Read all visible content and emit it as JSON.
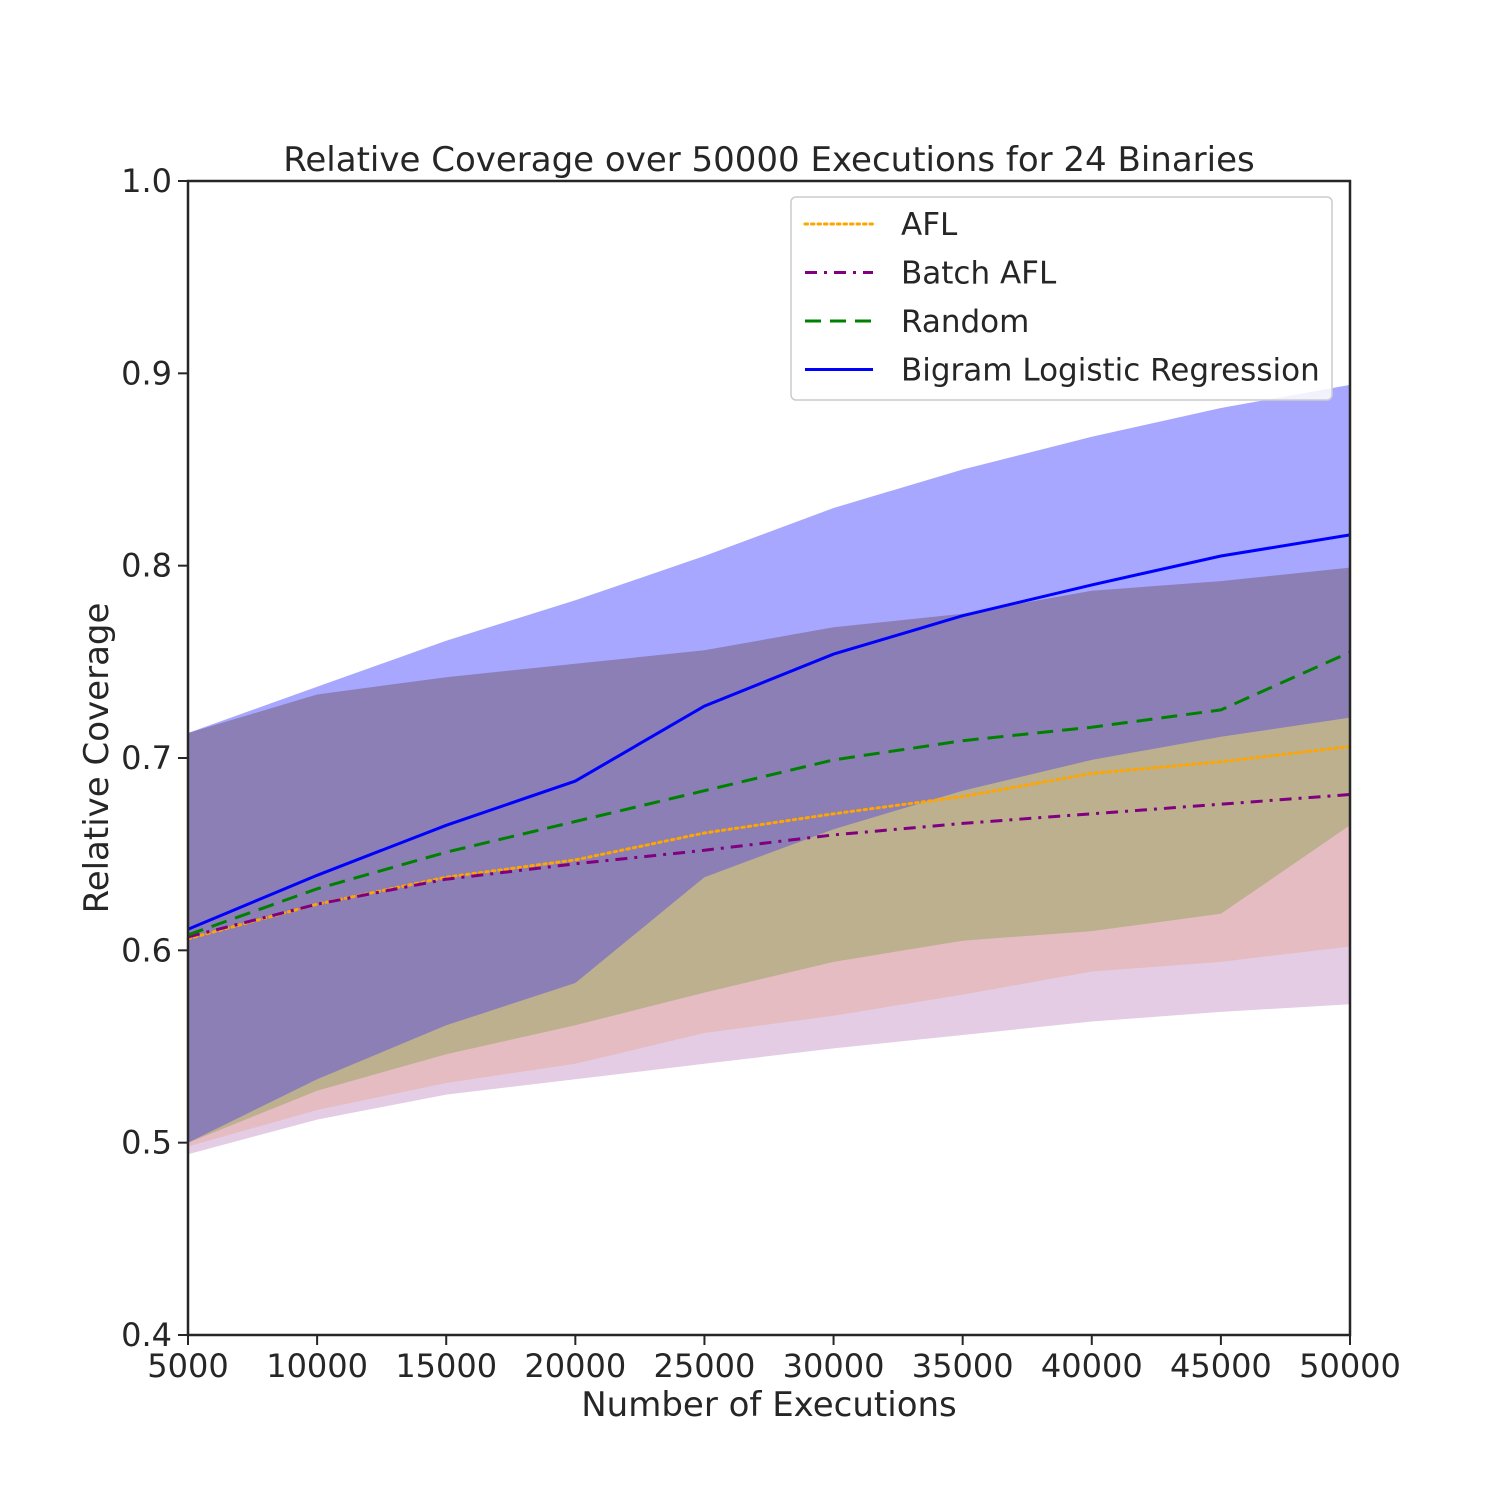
{
  "chart_data": {
    "type": "line",
    "title": "Relative Coverage over 50000 Executions for 24 Binaries",
    "xlabel": "Number of Executions",
    "ylabel": "Relative Coverage",
    "xlim": [
      5000,
      50000
    ],
    "ylim": [
      0.4,
      1.0
    ],
    "xticks": [
      5000,
      10000,
      15000,
      20000,
      25000,
      30000,
      35000,
      40000,
      45000,
      50000
    ],
    "yticks": [
      0.4,
      0.5,
      0.6,
      0.7,
      0.8,
      0.9,
      1.0
    ],
    "ytick_labels": [
      "0.4",
      "0.5",
      "0.6",
      "0.7",
      "0.8",
      "0.9",
      "1.0"
    ],
    "grid": false,
    "legend_position": "upper right",
    "x": [
      5000,
      10000,
      15000,
      20000,
      25000,
      30000,
      35000,
      40000,
      45000,
      50000
    ],
    "bands": [
      {
        "color": "#e4cce4",
        "upper": [
          0.713,
          0.729,
          0.741,
          0.748,
          0.756,
          0.761,
          0.766,
          0.768,
          0.772,
          0.777
        ],
        "lower": [
          0.494,
          0.512,
          0.525,
          0.533,
          0.541,
          0.549,
          0.556,
          0.563,
          0.568,
          0.572
        ]
      },
      {
        "color": "#e5bcc2",
        "upper": [
          0.713,
          0.729,
          0.741,
          0.749,
          0.76,
          0.768,
          0.775,
          0.787,
          0.792,
          0.799
        ],
        "lower": [
          0.498,
          0.517,
          0.531,
          0.541,
          0.557,
          0.566,
          0.577,
          0.589,
          0.594,
          0.602
        ]
      },
      {
        "color": "#bdb08f",
        "upper": [
          0.713,
          0.729,
          0.741,
          0.748,
          0.756,
          0.761,
          0.766,
          0.768,
          0.772,
          0.777
        ],
        "lower": [
          0.5,
          0.527,
          0.546,
          0.561,
          0.578,
          0.594,
          0.605,
          0.61,
          0.619,
          0.665
        ]
      },
      {
        "color": "#8b7fb5",
        "upper": [
          0.713,
          0.734,
          0.751,
          0.766,
          0.779,
          0.795,
          0.804,
          0.811,
          0.82,
          0.833
        ],
        "lower": [
          0.5,
          0.533,
          0.561,
          0.583,
          0.638,
          0.663,
          0.683,
          0.699,
          0.711,
          0.721
        ]
      },
      {
        "color": "#a7a7ff",
        "upper": [
          0.713,
          0.737,
          0.761,
          0.782,
          0.805,
          0.83,
          0.85,
          0.867,
          0.882,
          0.894
        ],
        "lower": [
          0.713,
          0.733,
          0.742,
          0.749,
          0.756,
          0.768,
          0.775,
          0.787,
          0.792,
          0.799
        ]
      }
    ],
    "series": [
      {
        "name": "AFL",
        "color": "#ffa500",
        "style": "dotted",
        "values": [
          0.606,
          0.624,
          0.638,
          0.647,
          0.661,
          0.671,
          0.68,
          0.692,
          0.698,
          0.706
        ]
      },
      {
        "name": "Batch AFL",
        "color": "#800080",
        "style": "dashdot",
        "values": [
          0.607,
          0.624,
          0.637,
          0.645,
          0.652,
          0.66,
          0.666,
          0.671,
          0.676,
          0.681
        ]
      },
      {
        "name": "Random",
        "color": "#008000",
        "style": "dashed",
        "values": [
          0.608,
          0.632,
          0.651,
          0.667,
          0.683,
          0.699,
          0.709,
          0.716,
          0.725,
          0.755
        ]
      },
      {
        "name": "Bigram Logistic Regression",
        "color": "#0000ff",
        "style": "solid",
        "values": [
          0.611,
          0.639,
          0.665,
          0.688,
          0.727,
          0.754,
          0.774,
          0.79,
          0.805,
          0.816
        ]
      }
    ]
  }
}
